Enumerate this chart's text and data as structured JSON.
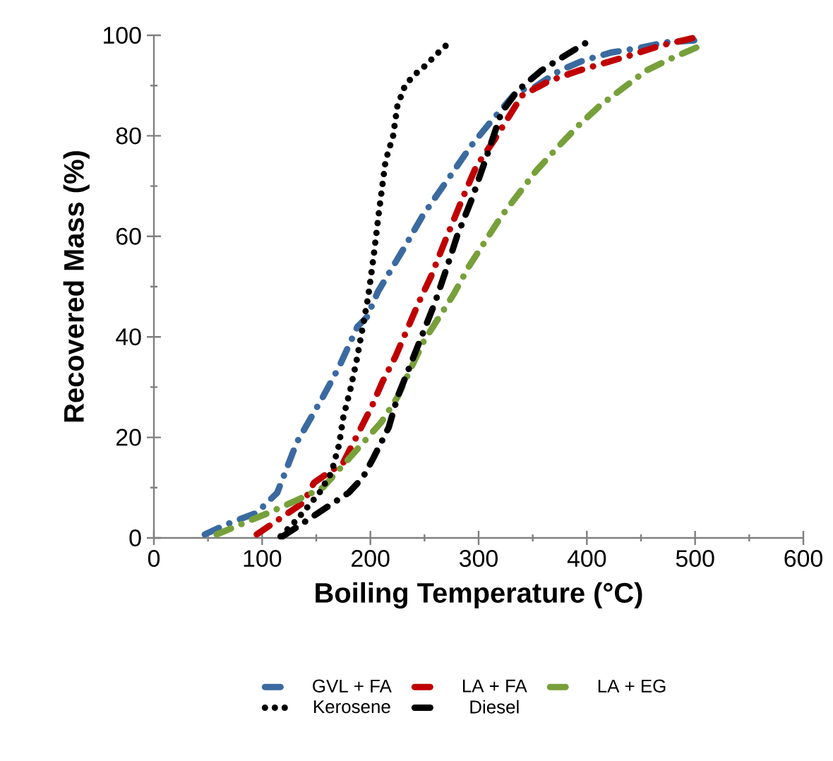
{
  "chart_data": {
    "type": "line",
    "xlabel": "Boiling Temperature (°C)",
    "ylabel": "Recovered Mass (%)",
    "xlim": [
      0,
      600
    ],
    "ylim": [
      0,
      100
    ],
    "xticks": [
      0,
      100,
      200,
      300,
      400,
      500,
      600
    ],
    "yticks": [
      0,
      20,
      40,
      60,
      80,
      100
    ],
    "grid": false,
    "legend": "bottom",
    "marker": "none",
    "series": [
      {
        "name": "GVL + FA",
        "color": "#3a6aa0",
        "line_style": "dashed",
        "x": [
          47,
          66,
          95,
          114,
          132,
          156,
          171,
          188,
          197,
          207,
          232,
          248,
          264,
          277,
          293,
          312,
          336,
          351,
          375,
          397,
          423,
          449,
          473,
          501
        ],
        "values": [
          0.7,
          2.6,
          5,
          9,
          19,
          28,
          34,
          42,
          44,
          49,
          58,
          64,
          69,
          73,
          78,
          83,
          89,
          89.6,
          93,
          95,
          96.6,
          97.5,
          98.6,
          99
        ]
      },
      {
        "name": "LA + FA",
        "color": "#c00000",
        "line_style": "dashed",
        "x": [
          95,
          138,
          148,
          175,
          201,
          211,
          223,
          245,
          256,
          267,
          286,
          298,
          314,
          340,
          366,
          393,
          440,
          469,
          499
        ],
        "values": [
          0.7,
          7,
          11,
          15,
          26,
          31,
          36,
          47,
          52,
          58,
          68,
          74,
          79,
          88,
          91,
          93,
          96,
          98,
          99.5
        ]
      },
      {
        "name": "LA + EG",
        "color": "#77a03a",
        "line_style": "dashed",
        "x": [
          58,
          106,
          132,
          156,
          177,
          210,
          225,
          238,
          249,
          277,
          291,
          306,
          321,
          353,
          372,
          392,
          412,
          455,
          479,
          506
        ],
        "values": [
          0.7,
          5,
          7.5,
          10,
          15,
          23,
          28,
          34,
          39,
          48.5,
          54,
          59,
          64,
          73,
          77.5,
          82,
          86,
          93,
          95.5,
          98
        ]
      },
      {
        "name": "Kerosene",
        "color": "#000000",
        "line_style": "dotted",
        "x": [
          117,
          132,
          153,
          164,
          171,
          175,
          182,
          187,
          193,
          198,
          203,
          208,
          214,
          221,
          225,
          232,
          240,
          251,
          262,
          273
        ],
        "values": [
          0.3,
          3.6,
          9,
          13,
          18.5,
          24,
          30,
          35,
          42,
          48,
          56,
          65,
          75,
          80,
          86,
          90,
          92,
          94,
          96.4,
          98.6
        ]
      },
      {
        "name": "Diesel",
        "color": "#000000",
        "line_style": "dashed",
        "x": [
          119,
          145,
          180,
          193,
          203,
          217,
          225,
          238,
          249,
          260,
          271,
          280,
          293,
          306,
          321,
          336,
          358,
          380,
          403
        ],
        "values": [
          0.3,
          4,
          9,
          12,
          16,
          22,
          28,
          35,
          41,
          47,
          54,
          60,
          67,
          75,
          84.6,
          89,
          93,
          96,
          99
        ]
      }
    ]
  }
}
